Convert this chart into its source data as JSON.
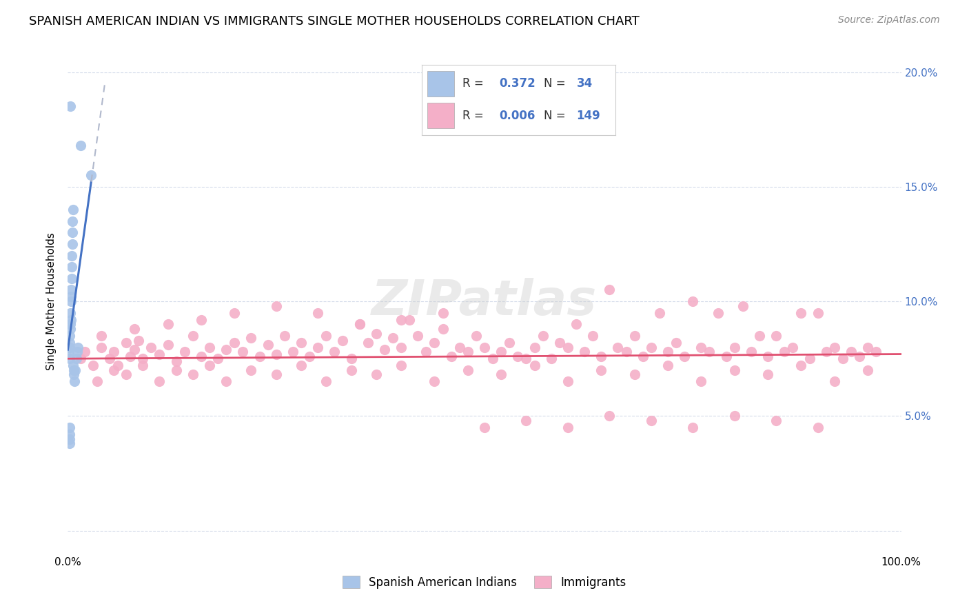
{
  "title": "SPANISH AMERICAN INDIAN VS IMMIGRANTS SINGLE MOTHER HOUSEHOLDS CORRELATION CHART",
  "source": "Source: ZipAtlas.com",
  "ylabel": "Single Mother Households",
  "xlim": [
    0,
    100
  ],
  "ylim": [
    -1,
    21
  ],
  "yticks": [
    0,
    5,
    10,
    15,
    20
  ],
  "ytick_labels_right": [
    "",
    "5.0%",
    "10.0%",
    "15.0%",
    "20.0%"
  ],
  "xticks": [
    0,
    20,
    40,
    60,
    80,
    100
  ],
  "xtick_labels": [
    "0.0%",
    "",
    "",
    "",
    "",
    "100.0%"
  ],
  "legend_blue_r": "0.372",
  "legend_blue_n": "34",
  "legend_pink_r": "0.006",
  "legend_pink_n": "149",
  "watermark": "ZIPatlas",
  "blue_line_color": "#4472c4",
  "pink_line_color": "#e05070",
  "blue_dot_color": "#a8c4e8",
  "pink_dot_color": "#f4afc8",
  "dashed_line_color": "#b0b8cc",
  "background_color": "#ffffff",
  "grid_color": "#d0d8e8",
  "title_fontsize": 13,
  "axis_label_fontsize": 11,
  "tick_fontsize": 11,
  "source_fontsize": 10,
  "blue_x": [
    0.15,
    0.18,
    0.2,
    0.22,
    0.25,
    0.28,
    0.3,
    0.32,
    0.35,
    0.38,
    0.4,
    0.42,
    0.45,
    0.48,
    0.5,
    0.52,
    0.55,
    0.58,
    0.6,
    0.65,
    0.7,
    0.75,
    0.8,
    0.9,
    1.0,
    1.1,
    1.2,
    1.5,
    0.2,
    0.25,
    0.18,
    0.22,
    0.3,
    2.8
  ],
  "blue_y": [
    7.8,
    8.2,
    8.5,
    8.0,
    7.5,
    8.8,
    9.0,
    9.5,
    9.2,
    10.0,
    10.2,
    10.5,
    11.0,
    11.5,
    12.0,
    12.5,
    13.0,
    13.5,
    14.0,
    7.2,
    7.0,
    6.8,
    6.5,
    7.0,
    7.5,
    7.8,
    8.0,
    16.8,
    3.8,
    4.0,
    4.5,
    4.2,
    18.5,
    15.5
  ],
  "pink_x": [
    1.5,
    2.0,
    3.0,
    4.0,
    5.0,
    5.5,
    6.0,
    7.0,
    7.5,
    8.0,
    8.5,
    9.0,
    10.0,
    11.0,
    12.0,
    13.0,
    14.0,
    15.0,
    16.0,
    17.0,
    18.0,
    19.0,
    20.0,
    21.0,
    22.0,
    23.0,
    24.0,
    25.0,
    26.0,
    27.0,
    28.0,
    29.0,
    30.0,
    31.0,
    32.0,
    33.0,
    34.0,
    35.0,
    36.0,
    37.0,
    38.0,
    39.0,
    40.0,
    41.0,
    42.0,
    43.0,
    44.0,
    45.0,
    46.0,
    47.0,
    48.0,
    49.0,
    50.0,
    51.0,
    52.0,
    53.0,
    54.0,
    55.0,
    56.0,
    57.0,
    58.0,
    59.0,
    60.0,
    61.0,
    62.0,
    63.0,
    64.0,
    65.0,
    66.0,
    67.0,
    68.0,
    69.0,
    70.0,
    71.0,
    72.0,
    73.0,
    74.0,
    75.0,
    76.0,
    77.0,
    78.0,
    79.0,
    80.0,
    81.0,
    82.0,
    83.0,
    84.0,
    85.0,
    86.0,
    87.0,
    88.0,
    89.0,
    90.0,
    91.0,
    92.0,
    93.0,
    94.0,
    95.0,
    96.0,
    97.0,
    3.5,
    5.5,
    7.0,
    9.0,
    11.0,
    13.0,
    15.0,
    17.0,
    19.0,
    22.0,
    25.0,
    28.0,
    31.0,
    34.0,
    37.0,
    40.0,
    44.0,
    48.0,
    52.0,
    56.0,
    60.0,
    64.0,
    68.0,
    72.0,
    76.0,
    80.0,
    84.0,
    88.0,
    92.0,
    96.0,
    4.0,
    8.0,
    12.0,
    16.0,
    20.0,
    25.0,
    30.0,
    35.0,
    40.0,
    45.0,
    50.0,
    55.0,
    60.0,
    65.0,
    70.0,
    75.0,
    80.0,
    85.0,
    90.0
  ],
  "pink_y": [
    7.5,
    7.8,
    7.2,
    8.0,
    7.5,
    7.8,
    7.2,
    8.2,
    7.6,
    7.9,
    8.3,
    7.5,
    8.0,
    7.7,
    8.1,
    7.4,
    7.8,
    8.5,
    7.6,
    8.0,
    7.5,
    7.9,
    8.2,
    7.8,
    8.4,
    7.6,
    8.1,
    7.7,
    8.5,
    7.8,
    8.2,
    7.6,
    8.0,
    8.5,
    7.8,
    8.3,
    7.5,
    9.0,
    8.2,
    8.6,
    7.9,
    8.4,
    8.0,
    9.2,
    8.5,
    7.8,
    8.2,
    8.8,
    7.6,
    8.0,
    7.8,
    8.5,
    8.0,
    7.5,
    7.8,
    8.2,
    7.6,
    7.5,
    8.0,
    8.5,
    7.5,
    8.2,
    8.0,
    9.0,
    7.8,
    8.5,
    7.6,
    10.5,
    8.0,
    7.8,
    8.5,
    7.6,
    8.0,
    9.5,
    7.8,
    8.2,
    7.6,
    10.0,
    8.0,
    7.8,
    9.5,
    7.6,
    8.0,
    9.8,
    7.8,
    8.5,
    7.6,
    8.5,
    7.8,
    8.0,
    9.5,
    7.5,
    9.5,
    7.8,
    8.0,
    7.5,
    7.8,
    7.6,
    8.0,
    7.8,
    6.5,
    7.0,
    6.8,
    7.2,
    6.5,
    7.0,
    6.8,
    7.2,
    6.5,
    7.0,
    6.8,
    7.2,
    6.5,
    7.0,
    6.8,
    7.2,
    6.5,
    7.0,
    6.8,
    7.2,
    6.5,
    7.0,
    6.8,
    7.2,
    6.5,
    7.0,
    6.8,
    7.2,
    6.5,
    7.0,
    8.5,
    8.8,
    9.0,
    9.2,
    9.5,
    9.8,
    9.5,
    9.0,
    9.2,
    9.5,
    4.5,
    4.8,
    4.5,
    5.0,
    4.8,
    4.5,
    5.0,
    4.8,
    4.5
  ]
}
